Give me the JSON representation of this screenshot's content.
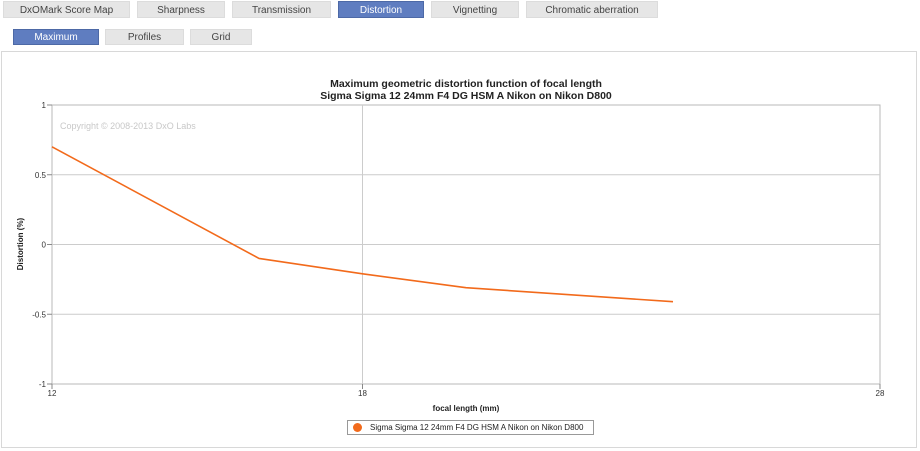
{
  "tabs": [
    {
      "label": "DxOMark Score Map",
      "active": false
    },
    {
      "label": "Sharpness",
      "active": false
    },
    {
      "label": "Transmission",
      "active": false
    },
    {
      "label": "Distortion",
      "active": true
    },
    {
      "label": "Vignetting",
      "active": false
    },
    {
      "label": "Chromatic aberration",
      "active": false
    }
  ],
  "subtabs": [
    {
      "label": "Maximum",
      "active": true
    },
    {
      "label": "Profiles",
      "active": false
    },
    {
      "label": "Grid",
      "active": false
    }
  ],
  "colors": {
    "accent": "#5f7dc0",
    "series": "#f26a1b",
    "grid": "#cccccc",
    "copyright": "#c8c8c8"
  },
  "chart_data": {
    "type": "line",
    "title": "Maximum geometric distortion function of focal length",
    "subtitle": "Sigma Sigma 12 24mm F4 DG HSM A Nikon on Nikon D800",
    "xlabel": "focal length (mm)",
    "ylabel": "Distortion (%)",
    "xlim": [
      12,
      28
    ],
    "ylim": [
      -1,
      1
    ],
    "x_ticks": [
      12,
      18,
      28
    ],
    "y_ticks": [
      1,
      0.5,
      0,
      -0.5,
      -1
    ],
    "y_tick_labels": [
      "1",
      "0.5",
      "0",
      "-0.5",
      "-1"
    ],
    "grid": true,
    "watermark": "Copyright © 2008-2013 DxO Labs",
    "legend_position": "bottom-center",
    "series": [
      {
        "name": "Sigma Sigma 12 24mm F4 DG HSM A Nikon on Nikon D800",
        "x": [
          12,
          16,
          18,
          20,
          24
        ],
        "y": [
          0.7,
          -0.1,
          -0.21,
          -0.31,
          -0.41
        ]
      }
    ]
  }
}
